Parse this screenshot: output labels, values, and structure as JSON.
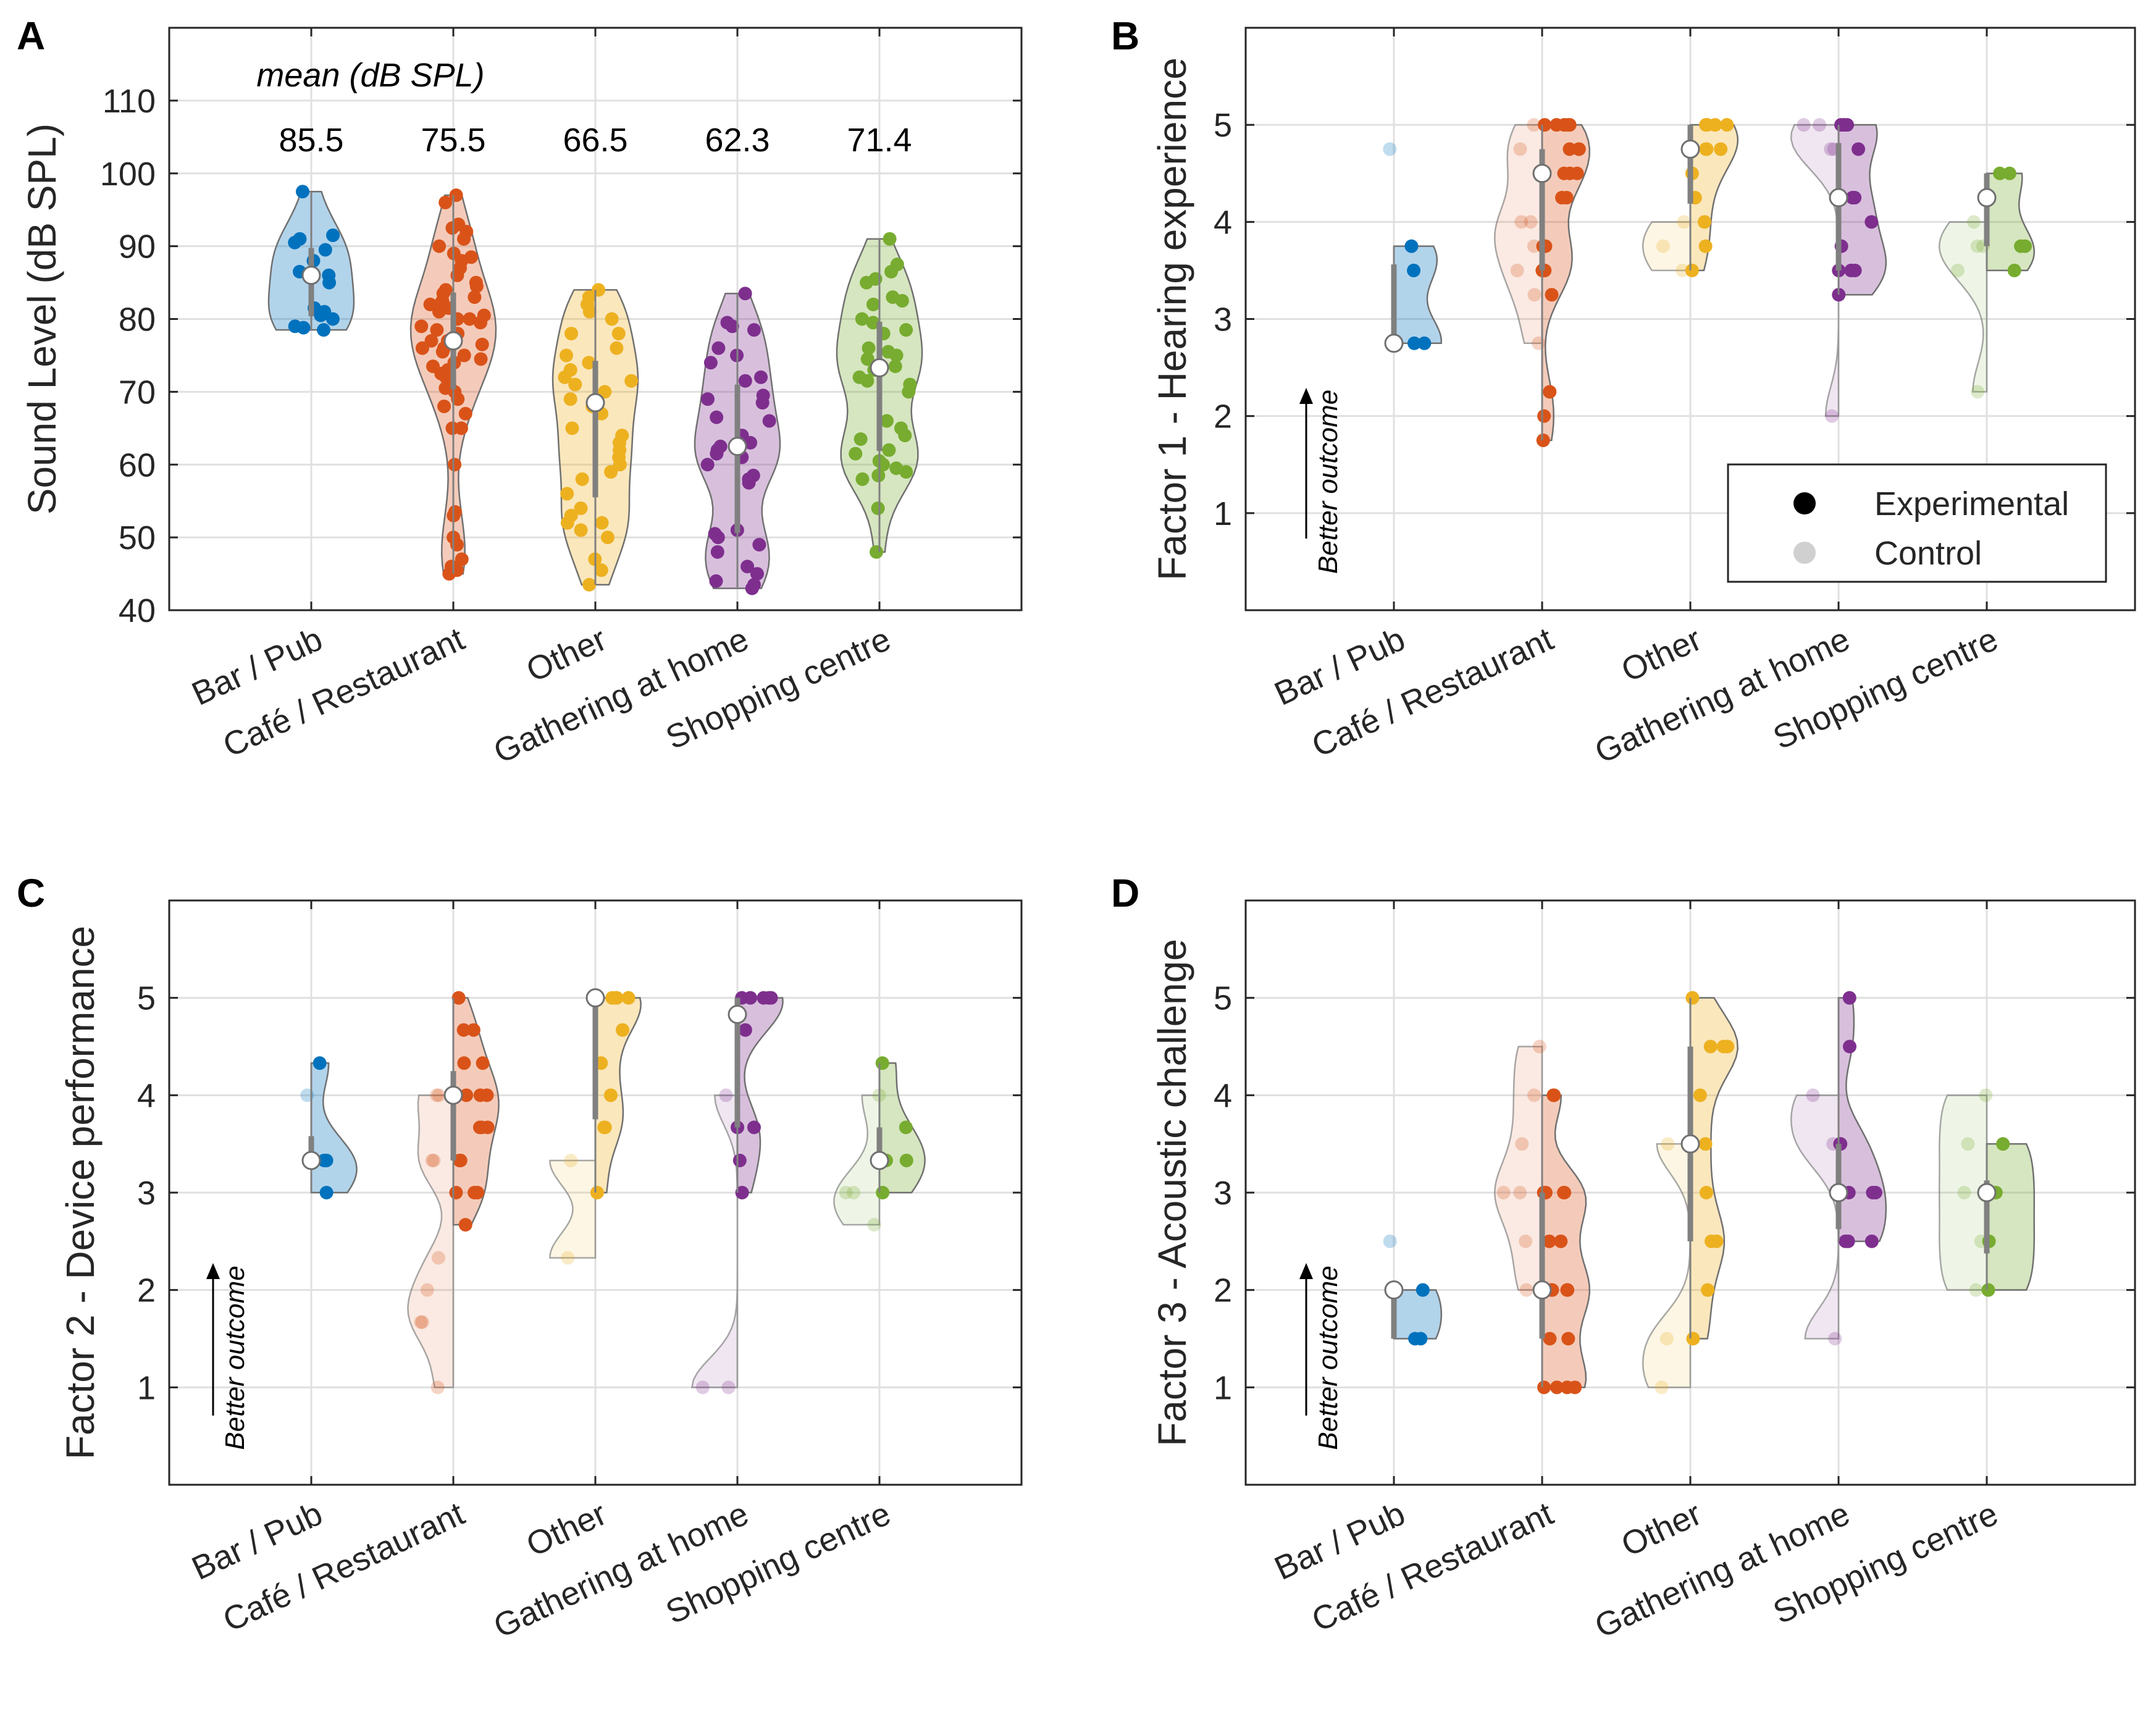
{
  "legend": {
    "entries": [
      {
        "label": "Experimental",
        "color": "#000000"
      },
      {
        "label": "Control",
        "color": "#d0d0d0"
      }
    ],
    "placement": "bottom-right of panel B"
  },
  "better_outcome_label": "Better outcome",
  "categories": [
    "Bar / Pub",
    "Café / Restaurant",
    "Other",
    "Gathering at home",
    "Shopping centre"
  ],
  "colors": [
    "#0072BD",
    "#D95319",
    "#EDB120",
    "#7E2F8E",
    "#77AC30"
  ],
  "chart_data": [
    {
      "type": "violin",
      "panel": "A",
      "ylabel": "Sound Level (dB SPL)",
      "ylim": [
        40,
        120
      ],
      "yticks": [
        40,
        50,
        60,
        70,
        80,
        90,
        100,
        110
      ],
      "grid": true,
      "mean_header": "mean (dB SPL)",
      "means": [
        "85.5",
        "75.5",
        "66.5",
        "62.3",
        "71.4"
      ],
      "groups": [
        {
          "median": 86,
          "points": [
            97.5,
            91.5,
            91,
            90.5,
            89.5,
            88,
            86.5,
            86,
            85,
            81.5,
            81,
            80.5,
            80,
            79,
            78.8,
            78.5
          ]
        },
        {
          "median": 77,
          "points": [
            97,
            96,
            93,
            92.5,
            92,
            91,
            90,
            89,
            88.5,
            88,
            87,
            86,
            85,
            84.5,
            84,
            83.5,
            83,
            82.5,
            82,
            82,
            81.5,
            81,
            80.5,
            80,
            80,
            79.5,
            79,
            78.5,
            78,
            77.5,
            77,
            77,
            76.5,
            76,
            76,
            75.5,
            75,
            74.5,
            74,
            73.5,
            73,
            72.5,
            72,
            71,
            70.5,
            70,
            69,
            68,
            67,
            65,
            65,
            60,
            53.5,
            53,
            50,
            49,
            47,
            46,
            45.5,
            45
          ]
        },
        {
          "median": 68.5,
          "points": [
            84,
            83,
            82,
            81,
            80,
            78,
            78,
            76,
            75,
            74,
            73,
            72,
            71.5,
            71,
            70,
            69,
            68,
            67,
            65,
            64,
            63,
            62,
            61,
            60,
            59,
            58,
            56,
            54,
            53,
            52,
            52,
            51,
            50,
            47,
            45.5,
            43.5
          ]
        },
        {
          "median": 62.5,
          "points": [
            83.5,
            79.5,
            79,
            78.5,
            76,
            75,
            74,
            72,
            71.5,
            69.5,
            69,
            68.5,
            66.5,
            66,
            64,
            63,
            62.5,
            62,
            61.5,
            61,
            60,
            58.5,
            58,
            57.5,
            51,
            50.5,
            50,
            49,
            48,
            46,
            45,
            44,
            43.5,
            43
          ]
        },
        {
          "median": 73.3,
          "points": [
            91,
            87.5,
            86.5,
            85.5,
            85,
            83,
            82.5,
            82,
            80,
            79.5,
            78.5,
            78,
            76,
            75.5,
            75,
            74.5,
            73.5,
            73,
            72,
            71.5,
            71,
            70,
            66,
            65,
            64,
            63.5,
            62,
            61.5,
            60.5,
            60,
            59.5,
            59,
            58.5,
            58,
            54,
            48
          ]
        }
      ]
    },
    {
      "type": "split-violin",
      "panel": "B",
      "ylabel": "Factor 1 - Hearing experience",
      "ylim": [
        0,
        6
      ],
      "yticks": [
        1,
        2,
        3,
        4,
        5
      ],
      "grid": true,
      "groups": [
        {
          "median": 2.75,
          "experimental": [
            3.75,
            3.5,
            2.75,
            2.75
          ],
          "control": [
            4.75
          ]
        },
        {
          "median": 4.5,
          "experimental": [
            5,
            5,
            5,
            5,
            5,
            4.75,
            4.75,
            4.75,
            4.5,
            4.5,
            4.5,
            4.5,
            4.25,
            4.25,
            3.75,
            3.75,
            3.75,
            3.5,
            3.5,
            3.5,
            3.25,
            2.25,
            2,
            1.75
          ],
          "control": [
            5,
            4.75,
            4.5,
            4,
            4,
            3.75,
            3.5,
            3.25,
            2.75
          ]
        },
        {
          "median": 4.75,
          "experimental": [
            5,
            5,
            5,
            5,
            4.75,
            4.75,
            4.75,
            4.5,
            4.25,
            4,
            3.75,
            3.5
          ],
          "control": [
            4,
            3.75,
            3.5
          ]
        },
        {
          "median": 4.25,
          "experimental": [
            5,
            5,
            5,
            4.75,
            4.25,
            4.25,
            4,
            3.75,
            3.5,
            3.5,
            3.5,
            3.25
          ],
          "control": [
            5,
            5,
            4.75,
            4.75,
            2
          ]
        },
        {
          "median": 4.25,
          "experimental": [
            4.5,
            4.5,
            3.75,
            3.75,
            3.5
          ],
          "control": [
            4,
            3.75,
            3.75,
            3.5,
            2.25
          ]
        }
      ]
    },
    {
      "type": "split-violin",
      "panel": "C",
      "ylabel": "Factor 2 - Device performance",
      "ylim": [
        0,
        6
      ],
      "yticks": [
        1,
        2,
        3,
        4,
        5
      ],
      "grid": true,
      "groups": [
        {
          "median": 3.33,
          "experimental": [
            4.33,
            3.33,
            3.33,
            3
          ],
          "control": [
            4
          ]
        },
        {
          "median": 4,
          "experimental": [
            5,
            4.67,
            4.67,
            4.33,
            4.33,
            4,
            4,
            4,
            4,
            3.67,
            3.67,
            3.67,
            3.33,
            3.33,
            3,
            3,
            3,
            2.67
          ],
          "control": [
            4,
            4,
            3.33,
            3.33,
            2.33,
            2,
            1.67,
            1.67,
            1
          ]
        },
        {
          "median": 5,
          "experimental": [
            5,
            5,
            5,
            5,
            4.67,
            4.33,
            4,
            3.67,
            3.67,
            3
          ],
          "control": [
            3.33,
            2.33
          ]
        },
        {
          "median": 4.83,
          "experimental": [
            5,
            5,
            5,
            5,
            5,
            4.67,
            3.67,
            3.67,
            3.33,
            3
          ],
          "control": [
            4,
            1,
            1
          ]
        },
        {
          "median": 3.33,
          "experimental": [
            4.33,
            3.67,
            3.33,
            3.33,
            3
          ],
          "control": [
            4,
            3,
            3,
            2.67
          ]
        }
      ]
    },
    {
      "type": "split-violin",
      "panel": "D",
      "ylabel": "Factor 3 - Acoustic challenge",
      "ylim": [
        0,
        6
      ],
      "yticks": [
        1,
        2,
        3,
        4,
        5
      ],
      "grid": true,
      "groups": [
        {
          "median": 2,
          "experimental": [
            2,
            2,
            1.5,
            1.5
          ],
          "control": [
            2.5
          ]
        },
        {
          "median": 2,
          "experimental": [
            4,
            4,
            3,
            3,
            3,
            3,
            2.5,
            2.5,
            2,
            2,
            2,
            2,
            1.5,
            1.5,
            1,
            1,
            1,
            1
          ],
          "control": [
            4.5,
            4,
            3.5,
            3,
            3,
            2.5,
            2
          ]
        },
        {
          "median": 3.5,
          "experimental": [
            5,
            4.5,
            4.5,
            4.5,
            4,
            3.5,
            3,
            2.5,
            2.5,
            2,
            1.5
          ],
          "control": [
            3.5,
            1.5,
            1
          ]
        },
        {
          "median": 3,
          "experimental": [
            5,
            4.5,
            3.5,
            3.5,
            3,
            3,
            3,
            2.5,
            2.5,
            2.5
          ],
          "control": [
            4,
            3.5,
            1.5
          ]
        },
        {
          "median": 3,
          "experimental": [
            3.5,
            3,
            2.5,
            2
          ],
          "control": [
            4,
            3.5,
            3,
            2.5,
            2
          ]
        }
      ]
    }
  ]
}
